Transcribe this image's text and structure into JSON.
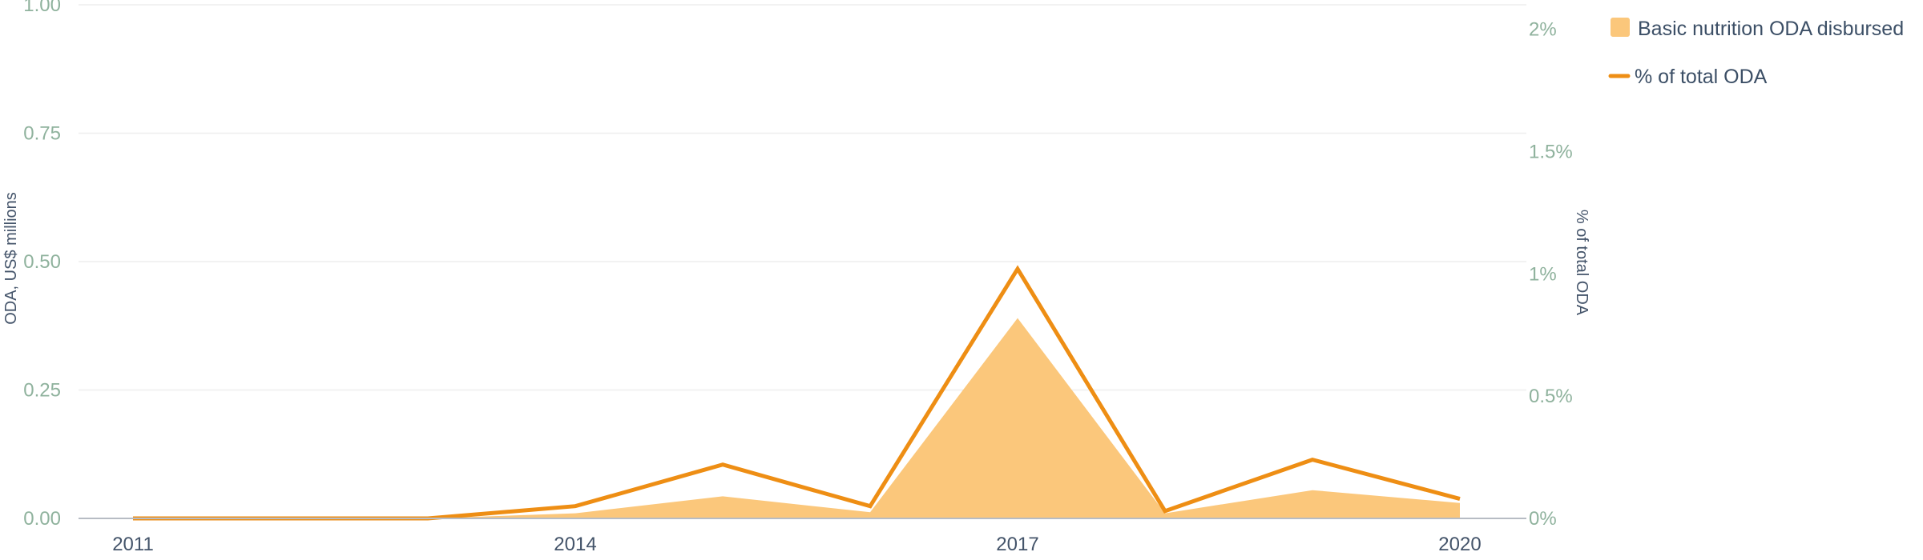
{
  "chart_data": {
    "type": "area",
    "x": [
      2011,
      2012,
      2013,
      2014,
      2015,
      2016,
      2017,
      2018,
      2019,
      2020
    ],
    "x_tick_labels": [
      "2011",
      "2014",
      "2017",
      "2020"
    ],
    "x_tick_values": [
      2011,
      2014,
      2017,
      2020
    ],
    "left_axis": {
      "label": "ODA, US$ millions",
      "range": [
        0,
        1
      ],
      "tick_values": [
        0,
        0.25,
        0.5,
        0.75,
        1
      ],
      "tick_labels": [
        "0.00",
        "0.25",
        "0.50",
        "0.75",
        "1.00"
      ]
    },
    "right_axis": {
      "label": "% of total ODA",
      "range": [
        0,
        2.1
      ],
      "tick_values": [
        0,
        0.5,
        1,
        1.5,
        2
      ],
      "tick_labels": [
        "0%",
        "0.5%",
        "1%",
        "1.5%",
        "2%"
      ]
    },
    "series": [
      {
        "name": "Basic nutrition ODA disbursed",
        "type": "area",
        "axis": "left",
        "color": "#fbc77b",
        "values": [
          0,
          0,
          0,
          0.01,
          0.043,
          0.012,
          0.39,
          0.01,
          0.055,
          0.03
        ]
      },
      {
        "name": "% of total ODA",
        "type": "line",
        "axis": "right",
        "color": "#ee8e14",
        "values": [
          0,
          0,
          0,
          0.05,
          0.22,
          0.05,
          1.02,
          0.03,
          0.24,
          0.08
        ]
      }
    ],
    "grid": true,
    "legend_position": "top-right"
  }
}
